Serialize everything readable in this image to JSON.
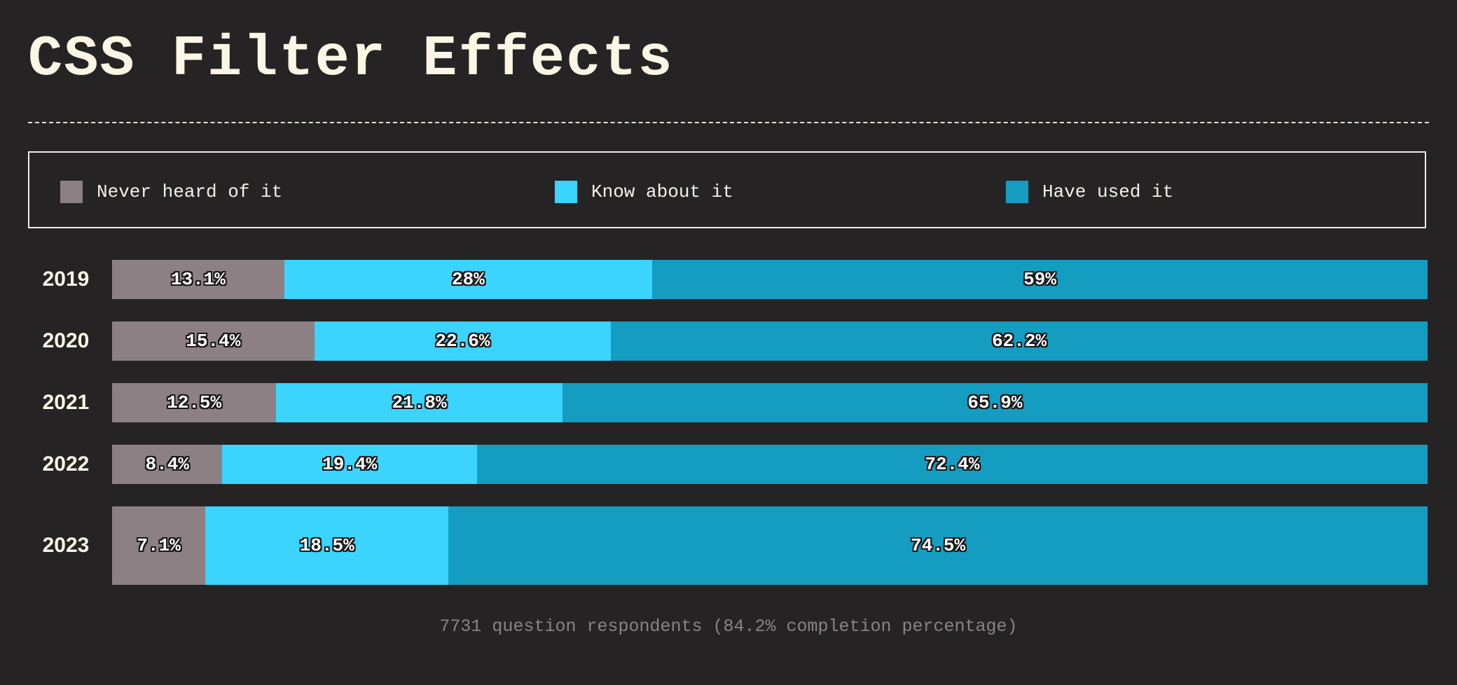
{
  "header": {
    "title": "CSS Filter Effects"
  },
  "legend": [
    {
      "label": "Never heard of it",
      "color": "#8c8085"
    },
    {
      "label": "Know about it",
      "color": "#3ad4ff"
    },
    {
      "label": "Have used it",
      "color": "#149dc1"
    }
  ],
  "chart_data": {
    "type": "bar",
    "orientation": "horizontal",
    "stacked": true,
    "categories": [
      "2019",
      "2020",
      "2021",
      "2022",
      "2023"
    ],
    "series": [
      {
        "name": "Never heard of it",
        "color": "#8c8085",
        "values": [
          13.1,
          15.4,
          12.5,
          8.4,
          7.1
        ]
      },
      {
        "name": "Know about it",
        "color": "#3ad4ff",
        "values": [
          28,
          22.6,
          21.8,
          19.4,
          18.5
        ]
      },
      {
        "name": "Have used it",
        "color": "#149dc1",
        "values": [
          59,
          62.2,
          65.9,
          72.4,
          74.5
        ]
      }
    ],
    "labels": [
      [
        "13.1%",
        "28%",
        "59%"
      ],
      [
        "15.4%",
        "22.6%",
        "62.2%"
      ],
      [
        "12.5%",
        "21.8%",
        "65.9%"
      ],
      [
        "8.4%",
        "19.4%",
        "72.4%"
      ],
      [
        "7.1%",
        "18.5%",
        "74.5%"
      ]
    ],
    "xlim": [
      0,
      100
    ],
    "legend_position": "top"
  },
  "footer": {
    "note": "7731 question respondents (84.2% completion percentage)"
  }
}
